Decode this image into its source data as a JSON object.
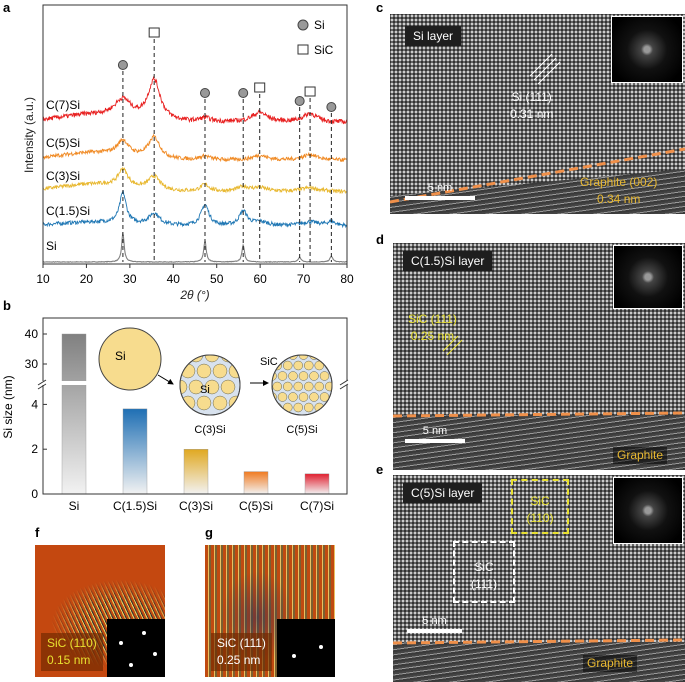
{
  "panels": {
    "a": "a",
    "b": "b",
    "c": "c",
    "d": "d",
    "e": "e",
    "f": "f",
    "g": "g"
  },
  "chart_data": [
    {
      "type": "line",
      "panel": "a",
      "xlabel": "2θ (°)",
      "ylabel": "Intensity (a.u.)",
      "xlim": [
        10,
        80
      ],
      "xticks": [
        "10",
        "20",
        "30",
        "40",
        "50",
        "60",
        "70",
        "80"
      ],
      "legend": [
        {
          "symbol": "circle",
          "label": "Si"
        },
        {
          "symbol": "square",
          "label": "SiC"
        }
      ],
      "legend_position": "top-right",
      "si_peaks": [
        28.4,
        47.3,
        56.1,
        69.1,
        76.4
      ],
      "sic_peaks": [
        35.6,
        59.9,
        71.5
      ],
      "series": [
        {
          "name": "Si",
          "color": "#808080",
          "offset": 0,
          "noise": 0.3,
          "peaks": [
            [
              28.4,
              30,
              0.35
            ],
            [
              47.3,
              22,
              0.35
            ],
            [
              56.1,
              18,
              0.35
            ],
            [
              69.1,
              5,
              0.4
            ],
            [
              76.4,
              6,
              0.4
            ]
          ]
        },
        {
          "name": "C(1.5)Si",
          "color": "#1f77b4",
          "offset": 20,
          "noise": 2,
          "peaks": [
            [
              28.4,
              32,
              0.9
            ],
            [
              35.6,
              12,
              1.5
            ],
            [
              47.3,
              22,
              1.1
            ],
            [
              56.1,
              15,
              1.1
            ],
            [
              60,
              4,
              2
            ],
            [
              71.5,
              4,
              2.5
            ],
            [
              76.4,
              4,
              1.2
            ]
          ]
        },
        {
          "name": "C(3)Si",
          "color": "#e8b830",
          "offset": 58,
          "noise": 2,
          "peaks": [
            [
              28.4,
              18,
              1.3
            ],
            [
              35.6,
              14,
              1.6
            ],
            [
              47.3,
              7,
              1.3
            ],
            [
              56.1,
              5,
              1.5
            ],
            [
              59.9,
              4,
              2
            ],
            [
              71.5,
              4,
              2.5
            ]
          ]
        },
        {
          "name": "C(5)Si",
          "color": "#f08a24",
          "offset": 93,
          "noise": 2,
          "peaks": [
            [
              28.4,
              15,
              1.5
            ],
            [
              35.6,
              22,
              1.6
            ],
            [
              47.3,
              4,
              1.5
            ],
            [
              59.9,
              5,
              2
            ],
            [
              71.5,
              6,
              2
            ]
          ]
        },
        {
          "name": "C(7)Si",
          "color": "#e82020",
          "offset": 135,
          "noise": 2.4,
          "peaks": [
            [
              28.4,
              18,
              2.2
            ],
            [
              35.6,
              42,
              1.7
            ],
            [
              47.3,
              4,
              1.5
            ],
            [
              59.9,
              10,
              2.2
            ],
            [
              71.5,
              9,
              2
            ]
          ]
        }
      ]
    },
    {
      "type": "bar",
      "panel": "b",
      "ylabel": "Si size (nm)",
      "categories": [
        "Si",
        "C(1.5)Si",
        "C(3)Si",
        "C(5)Si",
        "C(7)Si"
      ],
      "values": [
        40,
        3.8,
        2.0,
        1.0,
        0.9
      ],
      "colors": [
        "#808080",
        "#1f6fb4",
        "#e0a820",
        "#f07a20",
        "#e02030"
      ],
      "yticks_lower": [
        "0",
        "2",
        "4"
      ],
      "yticks_upper": [
        "30",
        "40"
      ],
      "ylim_lower": [
        0,
        5
      ],
      "ylim_upper": [
        26,
        43
      ],
      "axis_break": true
    }
  ],
  "schematic": {
    "si_large": "Si",
    "si_small": "Si",
    "sic": "SiC",
    "c3": "C(3)Si",
    "c5": "C(5)Si"
  },
  "c": {
    "tag": "Si layer",
    "ann1": "Si (111)",
    "ann2": "0.31 nm",
    "graphite1": "Graphite (002)",
    "graphite2": "0.34 nm",
    "scale": "5 nm"
  },
  "d": {
    "tag": "C(1.5)Si layer",
    "ann1": "SiC (111)",
    "ann2": "0.25 nm",
    "graphite": "Graphite",
    "scale": "5 nm"
  },
  "e": {
    "tag": "C(5)Si layer",
    "sic110a": "SiC",
    "sic110b": "(110)",
    "sic111a": "SiC",
    "sic111b": "(111)",
    "graphite": "Graphite",
    "scale": "5 nm"
  },
  "f": {
    "ann1": "SiC (110)",
    "ann2": "0.15 nm"
  },
  "g": {
    "ann1": "SiC (111)",
    "ann2": "0.25 nm"
  }
}
